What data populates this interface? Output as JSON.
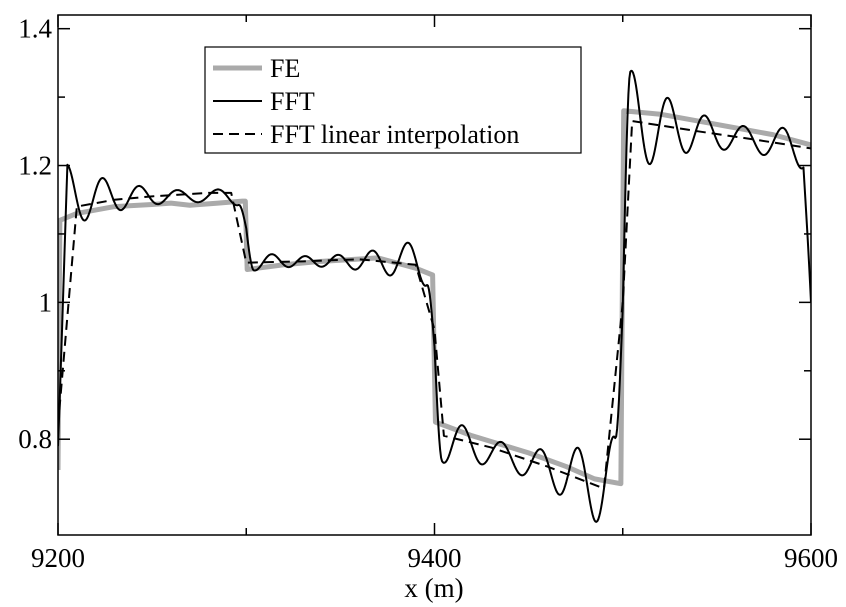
{
  "chart_data": {
    "type": "line",
    "xlabel": "x (m)",
    "ylabel": "",
    "xlim": [
      9200,
      9600
    ],
    "ylim": [
      0.66,
      1.42
    ],
    "xticks": [
      9200,
      9400,
      9600
    ],
    "xtick_labels": [
      "9200",
      "9400",
      "9600"
    ],
    "xminor": [
      9300,
      9500
    ],
    "yticks": [
      0.8,
      1.0,
      1.2,
      1.4
    ],
    "ytick_labels": [
      "0.8",
      "1",
      "1.2",
      "1.4"
    ],
    "yminor": [
      0.9,
      1.1,
      1.3
    ],
    "grid": false,
    "legend_position": "top-center",
    "series": [
      {
        "name": "FE",
        "color": "#aaaaaa",
        "style": "solid-thick",
        "points": [
          [
            9200,
            0.755
          ],
          [
            9201,
            1.12
          ],
          [
            9210,
            1.13
          ],
          [
            9230,
            1.14
          ],
          [
            9250,
            1.143
          ],
          [
            9260,
            1.145
          ],
          [
            9270,
            1.142
          ],
          [
            9285,
            1.145
          ],
          [
            9298,
            1.148
          ],
          [
            9299.5,
            1.148
          ],
          [
            9300.5,
            1.048
          ],
          [
            9320,
            1.055
          ],
          [
            9340,
            1.06
          ],
          [
            9370,
            1.065
          ],
          [
            9390,
            1.05
          ],
          [
            9399,
            1.04
          ],
          [
            9400.5,
            0.825
          ],
          [
            9420,
            0.805
          ],
          [
            9450,
            0.78
          ],
          [
            9470,
            0.76
          ],
          [
            9485,
            0.742
          ],
          [
            9499,
            0.735
          ],
          [
            9500.5,
            1.28
          ],
          [
            9520,
            1.275
          ],
          [
            9550,
            1.26
          ],
          [
            9580,
            1.245
          ],
          [
            9600,
            1.23
          ]
        ]
      },
      {
        "name": "FFT",
        "color": "#000000",
        "style": "solid",
        "points": []
      },
      {
        "name": "FFT linear interpolation",
        "color": "#000000",
        "style": "dashed",
        "points": [
          [
            9200,
            0.82
          ],
          [
            9210,
            1.14
          ],
          [
            9230,
            1.15
          ],
          [
            9250,
            1.155
          ],
          [
            9280,
            1.16
          ],
          [
            9292,
            1.16
          ],
          [
            9300,
            1.058
          ],
          [
            9330,
            1.06
          ],
          [
            9360,
            1.063
          ],
          [
            9390,
            1.055
          ],
          [
            9400,
            0.96
          ],
          [
            9405,
            0.805
          ],
          [
            9430,
            0.788
          ],
          [
            9460,
            0.76
          ],
          [
            9490,
            0.728
          ],
          [
            9500,
            1.0
          ],
          [
            9505,
            1.265
          ],
          [
            9540,
            1.25
          ],
          [
            9570,
            1.238
          ],
          [
            9600,
            1.225
          ]
        ]
      }
    ],
    "fft_model": {
      "description_free": true,
      "breaks": [
        [
          9200,
          9300,
          1.155
        ],
        [
          9300,
          9400,
          1.06
        ],
        [
          9400,
          9500,
          0.79
        ],
        [
          9500,
          9600,
          1.25
        ]
      ]
    }
  }
}
